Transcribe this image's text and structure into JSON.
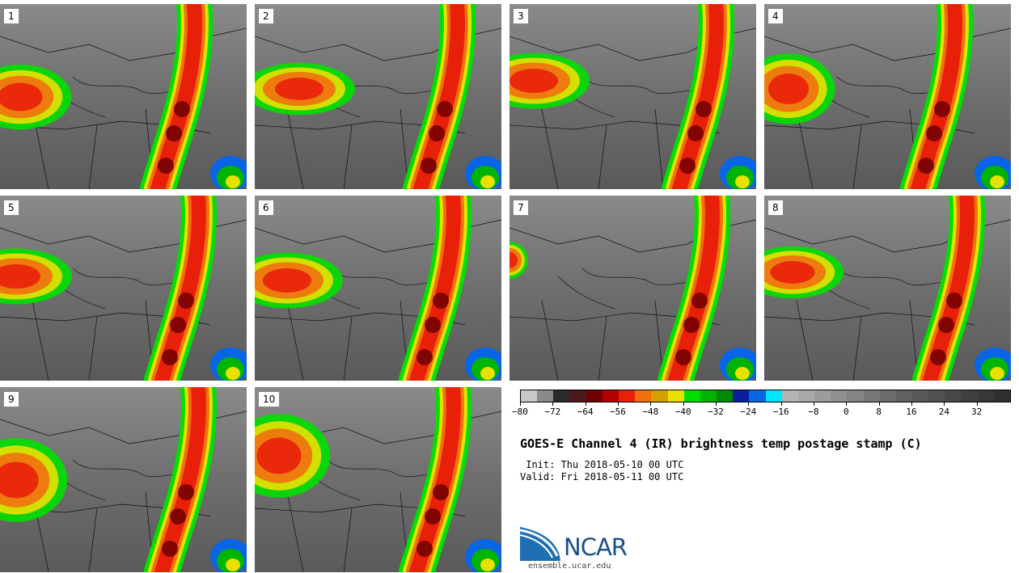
{
  "panels": [
    "1",
    "2",
    "3",
    "4",
    "5",
    "6",
    "7",
    "8",
    "9",
    "10"
  ],
  "colorbar": {
    "colors": [
      "#c8c8c8",
      "#8a8a8a",
      "#2b2b2b",
      "#4a1a1a",
      "#6e0000",
      "#b30000",
      "#e8200a",
      "#f07010",
      "#d4a000",
      "#e8e000",
      "#00e000",
      "#00b400",
      "#008a00",
      "#0a1f9e",
      "#0a64e6",
      "#00e6ff",
      "#b4b4b4",
      "#a8a8a8",
      "#9c9c9c",
      "#909090",
      "#848484",
      "#787878",
      "#6c6c6c",
      "#606060",
      "#585858",
      "#505050",
      "#484848",
      "#404040",
      "#383838",
      "#303030"
    ],
    "min": -80,
    "max": 40,
    "tick_values": [
      -80,
      -72,
      -64,
      -56,
      -48,
      -40,
      -32,
      -24,
      -16,
      -8,
      0,
      8,
      16,
      24,
      32
    ],
    "tick_labels": [
      "−80",
      "−72",
      "−64",
      "−56",
      "−48",
      "−40",
      "−32",
      "−24",
      "−16",
      "−8",
      "0",
      "8",
      "16",
      "24",
      "32"
    ]
  },
  "title": "GOES-E Channel 4 (IR) brightness temp postage stamp (C)",
  "init": " Init: Thu 2018-05-10 00 UTC",
  "valid": "Valid: Fri 2018-05-11 00 UTC",
  "logo": {
    "text": "NCAR",
    "url": "ensemble.ucar.edu"
  }
}
